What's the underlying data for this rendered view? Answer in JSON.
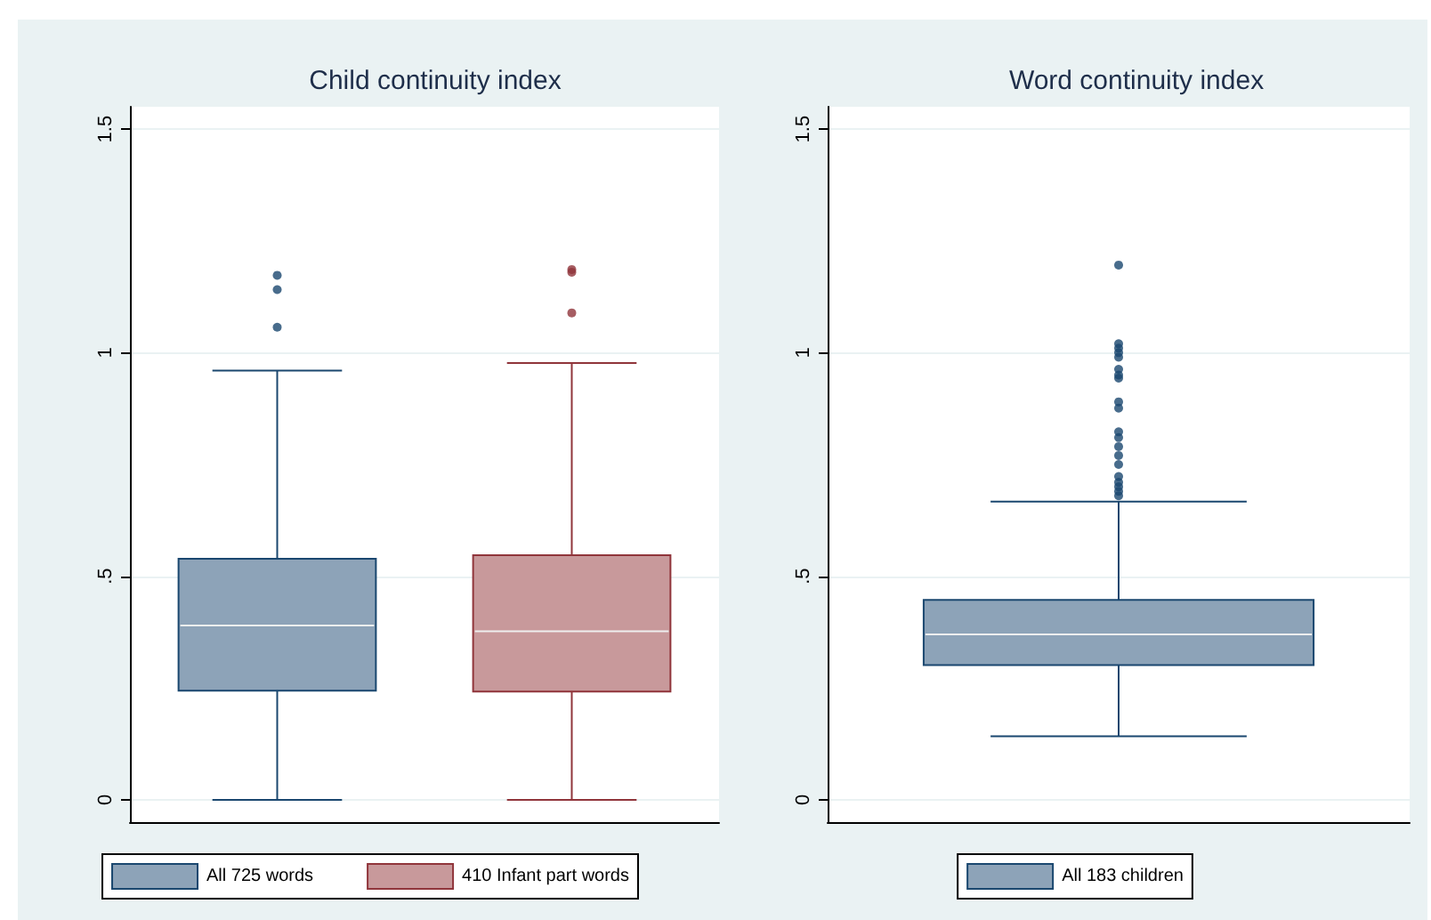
{
  "chart_data": [
    {
      "type": "box",
      "title": "Child continuity index",
      "categories": [
        null,
        null
      ],
      "series": [
        {
          "name": "All 725 words",
          "color": "#8da3b8",
          "boxes": [
            {
              "low": 0,
              "q1": 0.244,
              "median": 0.39,
              "q3": 0.539,
              "high": 0.96,
              "outliers": [
                1.057,
                1.141,
                1.173
              ]
            },
            null
          ]
        },
        {
          "name": "410 Infant part words",
          "color": "#c8999b",
          "boxes": [
            null,
            {
              "low": 0,
              "q1": 0.242,
              "median": 0.377,
              "q3": 0.547,
              "high": 0.977,
              "outliers": [
                1.089,
                1.18,
                1.186
              ]
            }
          ]
        }
      ],
      "ylim": [
        -0.05,
        1.55
      ],
      "yticks": [
        {
          "value": 0,
          "label": "0"
        },
        {
          "value": 0.5,
          "label": ".5"
        },
        {
          "value": 1,
          "label": "1"
        },
        {
          "value": 1.5,
          "label": "1.5"
        }
      ],
      "grid": "y",
      "legend": "bottom",
      "marker": "circle"
    },
    {
      "type": "box",
      "title": "Word continuity index",
      "categories": [
        null
      ],
      "series": [
        {
          "name": "All 183 children",
          "color": "#8da3b8",
          "boxes": [
            {
              "low": 0.142,
              "q1": 0.301,
              "median": 0.37,
              "q3": 0.447,
              "high": 0.667,
              "outliers": [
                0.68,
                0.69,
                0.7,
                0.71,
                0.723,
                0.75,
                0.77,
                0.79,
                0.81,
                0.823,
                0.876,
                0.89,
                0.943,
                0.95,
                0.963,
                0.99,
                1.0,
                1.01,
                1.02,
                1.196
              ]
            }
          ]
        }
      ],
      "ylim": [
        -0.05,
        1.55
      ],
      "yticks": [
        {
          "value": 0,
          "label": "0"
        },
        {
          "value": 0.5,
          "label": ".5"
        },
        {
          "value": 1,
          "label": "1"
        },
        {
          "value": 1.5,
          "label": "1.5"
        }
      ],
      "grid": "y",
      "legend": "bottom",
      "marker": "circle"
    }
  ]
}
